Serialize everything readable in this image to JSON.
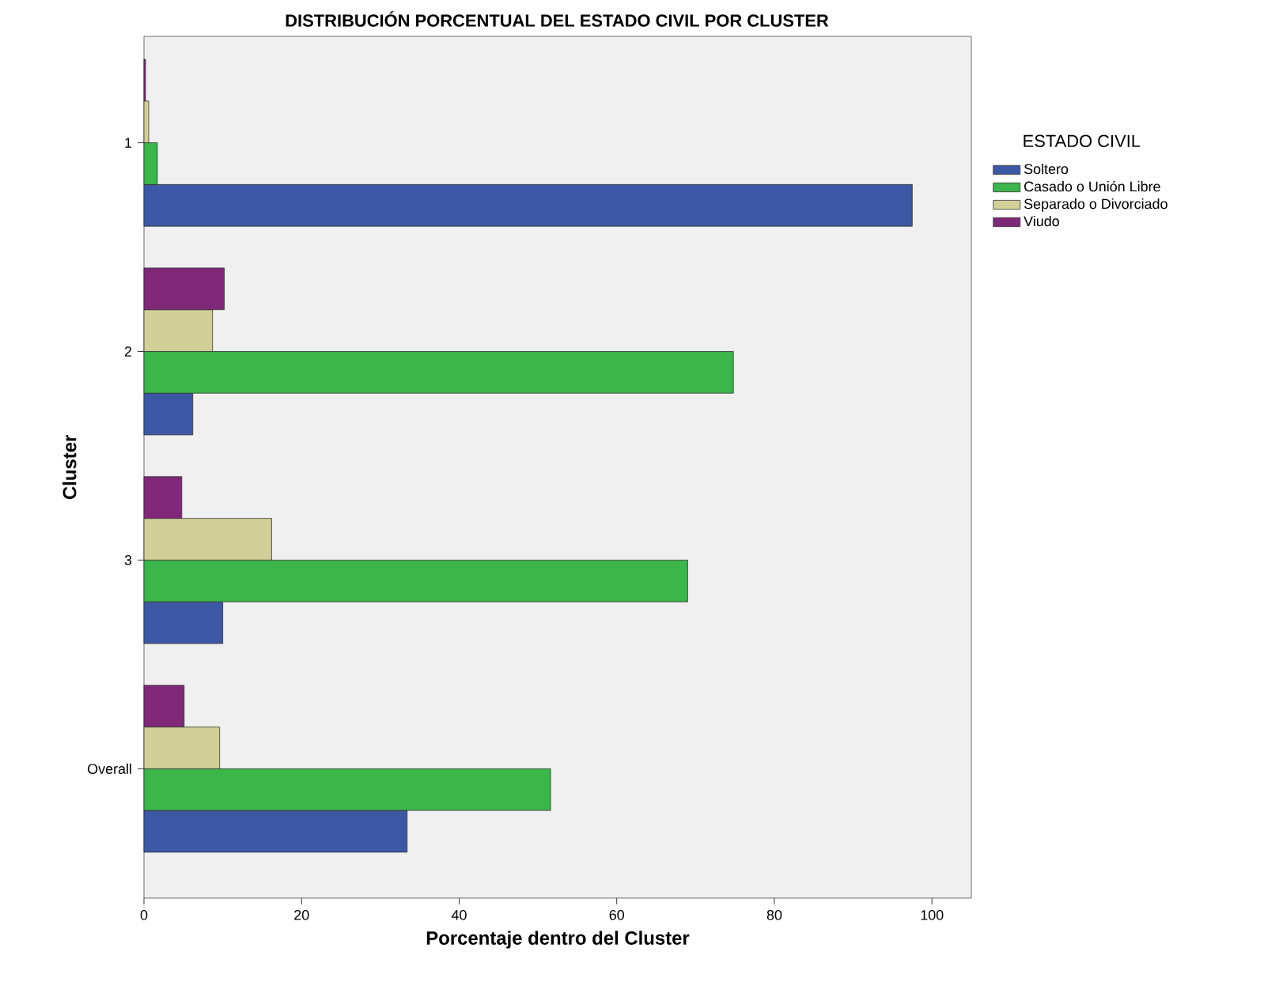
{
  "chart_data": {
    "type": "bar",
    "orientation": "horizontal",
    "title": "DISTRIBUCIÓN PORCENTUAL DEL ESTADO CIVIL POR CLUSTER",
    "xlabel": "Porcentaje dentro del Cluster",
    "ylabel": "Cluster",
    "legend_title": "ESTADO CIVIL",
    "legend": "right",
    "categories": [
      "1",
      "2",
      "3",
      "Overall"
    ],
    "series": [
      {
        "name": "Soltero",
        "color": "#3c58a4",
        "values": [
          97.5,
          6.2,
          10.0,
          33.4
        ]
      },
      {
        "name": "Casado o Unión Libre",
        "color": "#3cb54a",
        "values": [
          1.7,
          74.8,
          69.0,
          51.6
        ]
      },
      {
        "name": "Separado o Divorciado",
        "color": "#d2cf98",
        "values": [
          0.6,
          8.7,
          16.2,
          9.6
        ]
      },
      {
        "name": "Viudo",
        "color": "#7f2878",
        "values": [
          0.2,
          10.2,
          4.8,
          5.1
        ]
      }
    ],
    "xlim": [
      0,
      105
    ],
    "xticks": [
      0,
      20,
      40,
      60,
      80,
      100
    ]
  }
}
